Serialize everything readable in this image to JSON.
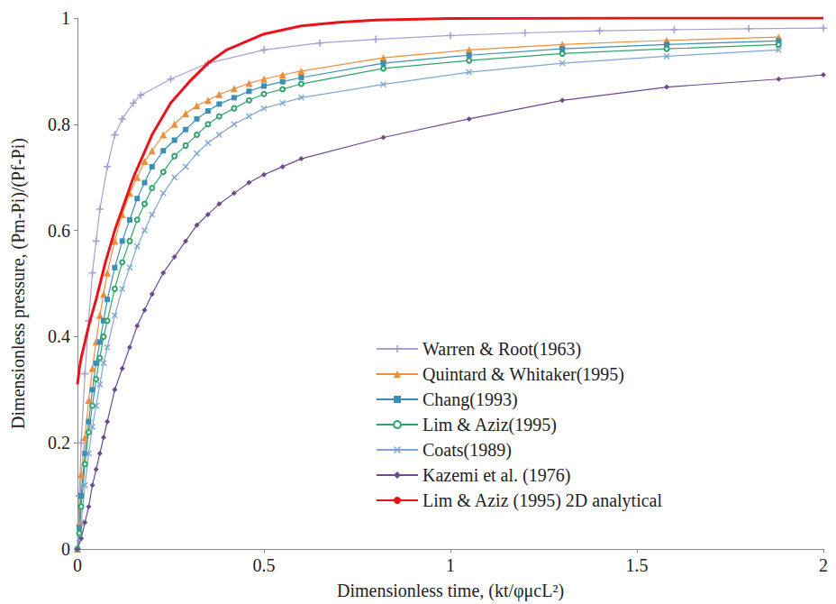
{
  "chart_data": {
    "type": "line",
    "x_label": "Dimensionless time, (kt/φμcL²)",
    "y_label": "Dimensionless pressure, (Pm-Pi)/(Pf-Pi)",
    "xlim": [
      0,
      2
    ],
    "xticks": [
      0,
      0.5,
      1,
      1.5,
      2
    ],
    "ylim": [
      0,
      1
    ],
    "yticks": [
      0,
      0.2,
      0.4,
      0.6,
      0.8,
      1
    ],
    "grid": false,
    "legend": "lower right",
    "series": [
      {
        "name": "Warren & Root(1963)",
        "color": "#a99dd2",
        "marker": "plus",
        "line_style": "solid",
        "x": [
          0,
          0.005,
          0.01,
          0.02,
          0.03,
          0.04,
          0.05,
          0.06,
          0.08,
          0.1,
          0.12,
          0.15,
          0.17,
          0.25,
          0.35,
          0.5,
          0.65,
          0.8,
          1.0,
          1.2,
          1.4,
          1.6,
          1.8,
          2.0
        ],
        "values": [
          0,
          0.1,
          0.2,
          0.33,
          0.43,
          0.52,
          0.58,
          0.64,
          0.72,
          0.78,
          0.81,
          0.84,
          0.855,
          0.885,
          0.915,
          0.94,
          0.953,
          0.96,
          0.967,
          0.972,
          0.976,
          0.978,
          0.98,
          0.981
        ]
      },
      {
        "name": "Quintard & Whitaker(1995)",
        "color": "#ec8f3c",
        "marker": "triangle",
        "line_style": "solid",
        "x": [
          0,
          0.005,
          0.01,
          0.02,
          0.03,
          0.04,
          0.05,
          0.06,
          0.07,
          0.08,
          0.1,
          0.12,
          0.14,
          0.16,
          0.18,
          0.2,
          0.23,
          0.26,
          0.29,
          0.32,
          0.35,
          0.38,
          0.42,
          0.46,
          0.5,
          0.55,
          0.6,
          0.82,
          1.05,
          1.3,
          1.58,
          1.88
        ],
        "values": [
          0,
          0.05,
          0.14,
          0.21,
          0.28,
          0.34,
          0.39,
          0.44,
          0.48,
          0.52,
          0.58,
          0.63,
          0.67,
          0.7,
          0.73,
          0.75,
          0.78,
          0.8,
          0.82,
          0.835,
          0.845,
          0.856,
          0.867,
          0.877,
          0.885,
          0.893,
          0.9,
          0.925,
          0.94,
          0.95,
          0.958,
          0.964
        ]
      },
      {
        "name": "Chang(1993)",
        "color": "#3b8fb5",
        "marker": "square",
        "line_style": "solid",
        "x": [
          0,
          0.005,
          0.01,
          0.02,
          0.03,
          0.04,
          0.05,
          0.06,
          0.07,
          0.08,
          0.1,
          0.12,
          0.14,
          0.16,
          0.18,
          0.2,
          0.23,
          0.26,
          0.29,
          0.32,
          0.35,
          0.38,
          0.42,
          0.46,
          0.5,
          0.55,
          0.6,
          0.82,
          1.05,
          1.3,
          1.58,
          1.88
        ],
        "values": [
          0,
          0.04,
          0.1,
          0.18,
          0.24,
          0.3,
          0.35,
          0.39,
          0.43,
          0.47,
          0.53,
          0.58,
          0.62,
          0.66,
          0.69,
          0.72,
          0.75,
          0.77,
          0.79,
          0.81,
          0.825,
          0.838,
          0.85,
          0.862,
          0.872,
          0.88,
          0.888,
          0.915,
          0.93,
          0.942,
          0.95,
          0.957
        ]
      },
      {
        "name": "Lim & Aziz(1995)",
        "color": "#2fa56c",
        "marker": "circle_open",
        "line_style": "solid",
        "x": [
          0,
          0.005,
          0.01,
          0.02,
          0.03,
          0.04,
          0.05,
          0.06,
          0.07,
          0.08,
          0.1,
          0.12,
          0.14,
          0.16,
          0.18,
          0.2,
          0.23,
          0.26,
          0.29,
          0.32,
          0.35,
          0.38,
          0.42,
          0.46,
          0.5,
          0.55,
          0.6,
          0.82,
          1.05,
          1.3,
          1.58,
          1.88
        ],
        "values": [
          0,
          0.03,
          0.08,
          0.16,
          0.22,
          0.27,
          0.32,
          0.36,
          0.4,
          0.43,
          0.49,
          0.54,
          0.58,
          0.62,
          0.65,
          0.68,
          0.71,
          0.74,
          0.76,
          0.78,
          0.8,
          0.815,
          0.83,
          0.845,
          0.857,
          0.866,
          0.876,
          0.905,
          0.92,
          0.933,
          0.942,
          0.95
        ]
      },
      {
        "name": "Coats(1989)",
        "color": "#7ea6d3",
        "marker": "x",
        "line_style": "solid",
        "x": [
          0,
          0.005,
          0.01,
          0.02,
          0.03,
          0.04,
          0.05,
          0.06,
          0.07,
          0.08,
          0.1,
          0.12,
          0.14,
          0.16,
          0.18,
          0.2,
          0.23,
          0.26,
          0.29,
          0.32,
          0.35,
          0.38,
          0.42,
          0.46,
          0.5,
          0.55,
          0.6,
          0.82,
          1.05,
          1.3,
          1.58,
          1.88
        ],
        "values": [
          0,
          0.02,
          0.05,
          0.12,
          0.18,
          0.23,
          0.27,
          0.31,
          0.35,
          0.38,
          0.44,
          0.49,
          0.53,
          0.57,
          0.6,
          0.63,
          0.67,
          0.7,
          0.72,
          0.745,
          0.765,
          0.78,
          0.8,
          0.815,
          0.83,
          0.84,
          0.85,
          0.875,
          0.898,
          0.915,
          0.928,
          0.94
        ]
      },
      {
        "name": "Kazemi et al. (1976)",
        "color": "#6a4b8f",
        "marker": "diamond",
        "line_style": "solid",
        "x": [
          0,
          0.01,
          0.02,
          0.03,
          0.04,
          0.05,
          0.06,
          0.07,
          0.08,
          0.1,
          0.12,
          0.14,
          0.16,
          0.18,
          0.2,
          0.23,
          0.26,
          0.29,
          0.32,
          0.35,
          0.38,
          0.42,
          0.46,
          0.5,
          0.55,
          0.6,
          0.82,
          1.05,
          1.3,
          1.58,
          1.88,
          2.0
        ],
        "values": [
          0,
          0.02,
          0.05,
          0.08,
          0.12,
          0.15,
          0.18,
          0.21,
          0.24,
          0.3,
          0.34,
          0.38,
          0.42,
          0.45,
          0.48,
          0.52,
          0.55,
          0.58,
          0.61,
          0.63,
          0.65,
          0.67,
          0.69,
          0.705,
          0.72,
          0.735,
          0.775,
          0.81,
          0.845,
          0.87,
          0.885,
          0.893
        ]
      },
      {
        "name": "Lim & Aziz (1995) 2D analytical",
        "color": "#e8141c",
        "marker": "none",
        "line_style": "solid",
        "x": [
          0,
          0.005,
          0.01,
          0.02,
          0.03,
          0.05,
          0.075,
          0.1,
          0.15,
          0.2,
          0.25,
          0.3,
          0.35,
          0.4,
          0.5,
          0.6,
          0.7,
          0.8,
          1.0,
          1.5,
          2.0
        ],
        "values": [
          0.31,
          0.34,
          0.36,
          0.39,
          0.42,
          0.47,
          0.54,
          0.6,
          0.7,
          0.78,
          0.84,
          0.88,
          0.915,
          0.94,
          0.97,
          0.985,
          0.992,
          0.996,
          0.999,
          1,
          1
        ]
      }
    ]
  }
}
